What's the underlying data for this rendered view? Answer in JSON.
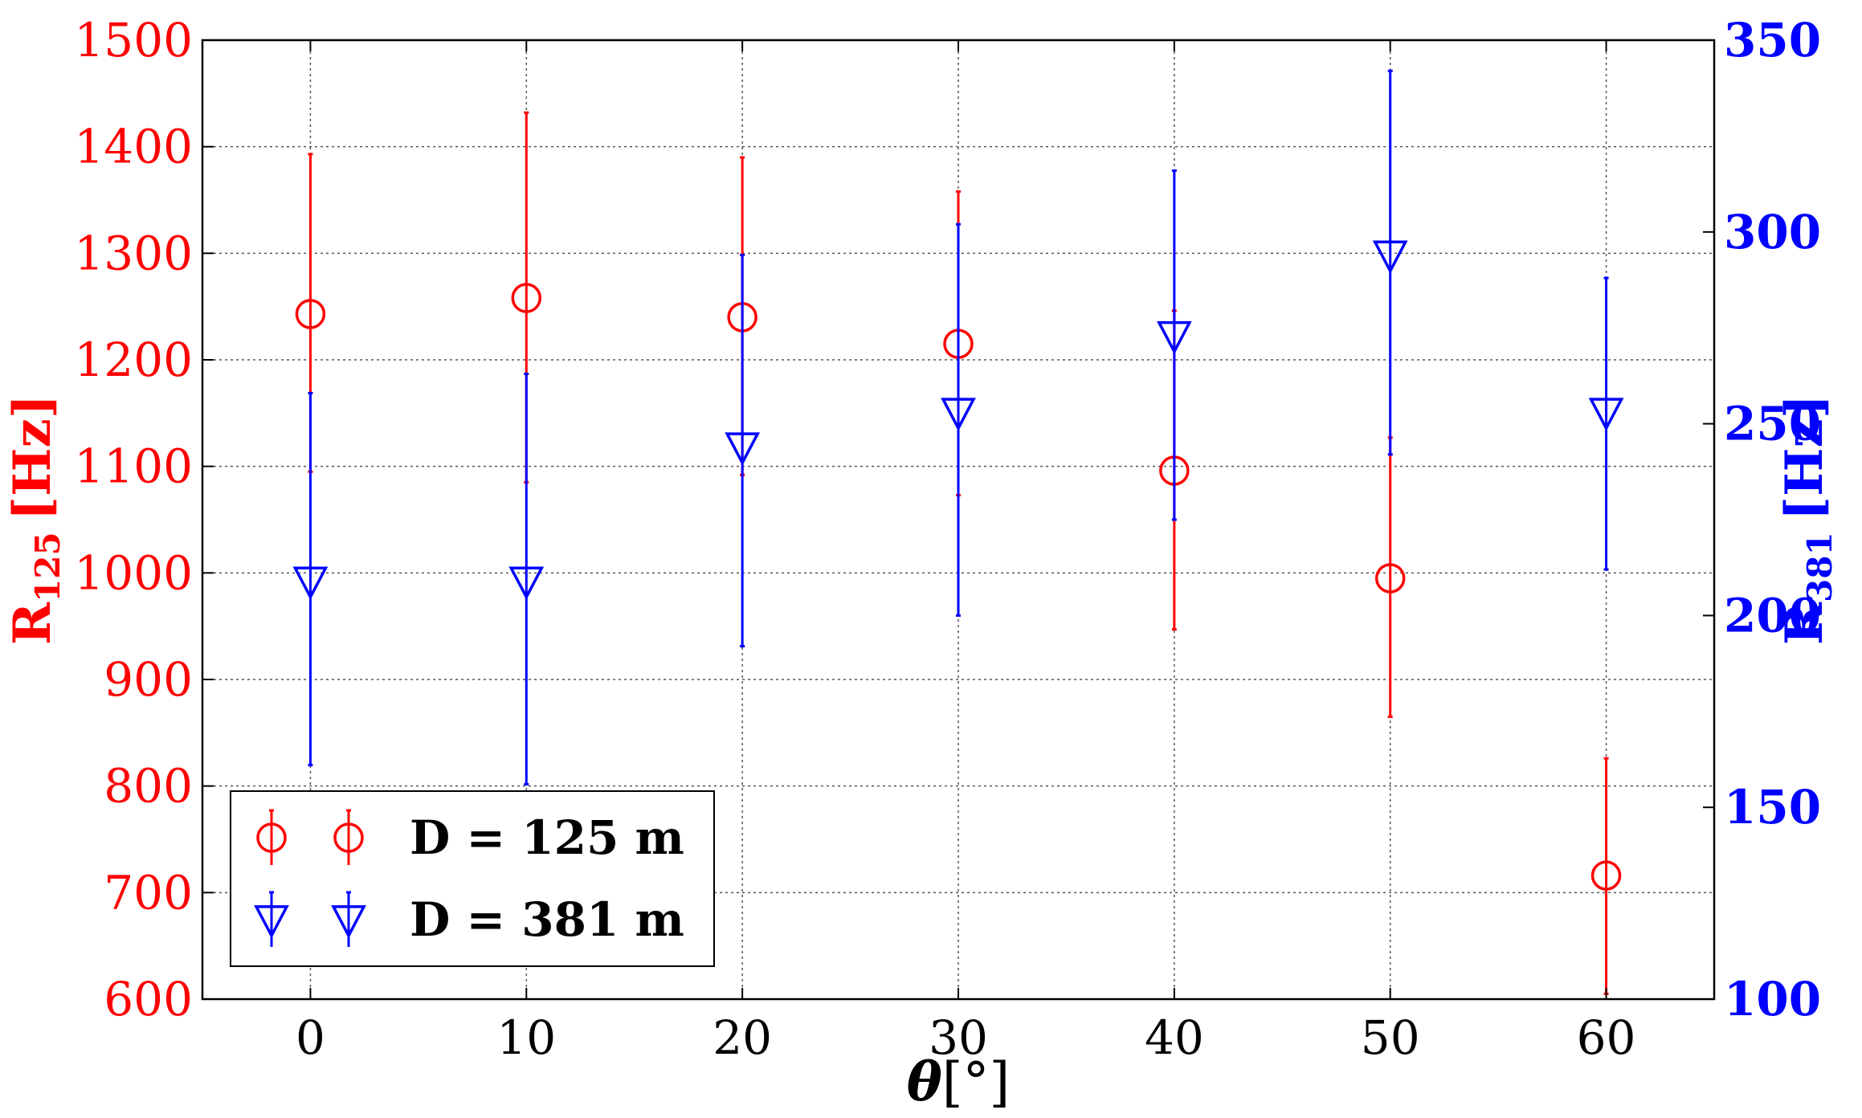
{
  "chart_data": {
    "type": "scatter",
    "x_label_symbol": "θ",
    "x_label_unit": "[°]",
    "x_ticks": [
      0,
      10,
      20,
      30,
      40,
      50,
      60
    ],
    "xlim": [
      -5,
      65
    ],
    "grid": true,
    "left_axis": {
      "label_main": "R",
      "label_sub": "125",
      "label_unit": "[Hz]",
      "color": "#ff0000",
      "ylim": [
        600,
        1500
      ],
      "ticks": [
        600,
        700,
        800,
        900,
        1000,
        1100,
        1200,
        1300,
        1400,
        1500
      ]
    },
    "right_axis": {
      "label_main": "R",
      "label_sub": "381",
      "label_unit": "[Hz]",
      "color": "#0000ff",
      "ylim": [
        100,
        350
      ],
      "ticks": [
        100,
        150,
        200,
        250,
        300,
        350
      ]
    },
    "legend_position": "lower-left",
    "series": [
      {
        "name": "D = 125 m",
        "axis": "left",
        "marker": "circle",
        "color": "#ff0000",
        "x": [
          0,
          10,
          20,
          30,
          40,
          50,
          60
        ],
        "y": [
          1243,
          1258,
          1240,
          1215,
          1096,
          995,
          716
        ],
        "err_low": [
          1095,
          1085,
          1092,
          1073,
          947,
          865,
          605
        ],
        "err_high": [
          1393,
          1432,
          1390,
          1358,
          1246,
          1127,
          826
        ]
      },
      {
        "name": "D = 381 m",
        "axis": "right",
        "marker": "triangle-down",
        "color": "#0000ff",
        "x": [
          0,
          10,
          20,
          30,
          40,
          50,
          60
        ],
        "y": [
          209,
          209,
          244,
          253,
          273,
          294,
          253
        ],
        "err_low": [
          161,
          156,
          192,
          200,
          225,
          242,
          212
        ],
        "err_high": [
          258,
          263,
          294,
          302,
          316,
          342,
          288
        ]
      }
    ]
  }
}
